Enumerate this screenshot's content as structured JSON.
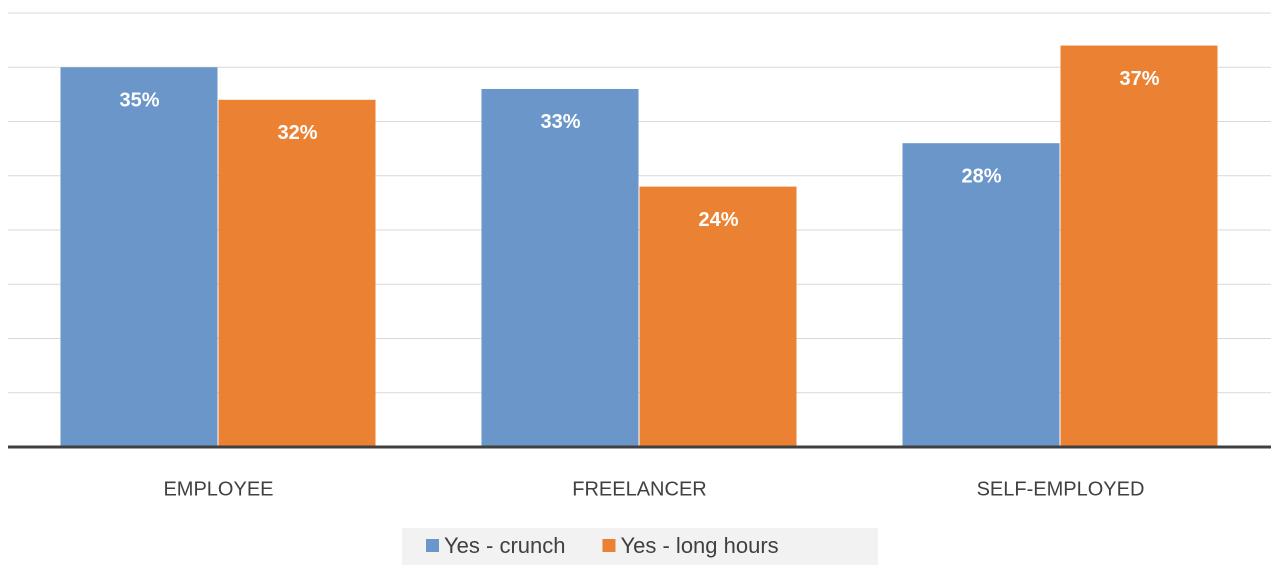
{
  "chart_data": {
    "type": "bar",
    "categories": [
      "EMPLOYEE",
      "FREELANCER",
      "SELF-EMPLOYED"
    ],
    "series": [
      {
        "name": "Yes - crunch",
        "color": "#6a96c9",
        "values": [
          35,
          33,
          28
        ],
        "value_labels": [
          "35%",
          "33%",
          "28%"
        ]
      },
      {
        "name": "Yes - long hours",
        "color": "#eb8233",
        "values": [
          32,
          24,
          37
        ],
        "value_labels": [
          "32%",
          "24%",
          "37%"
        ]
      }
    ],
    "ylim": [
      0,
      40
    ],
    "yticks": [
      0,
      5,
      10,
      15,
      20,
      25,
      30,
      35,
      40
    ],
    "grid": true,
    "legend": "bottom"
  }
}
